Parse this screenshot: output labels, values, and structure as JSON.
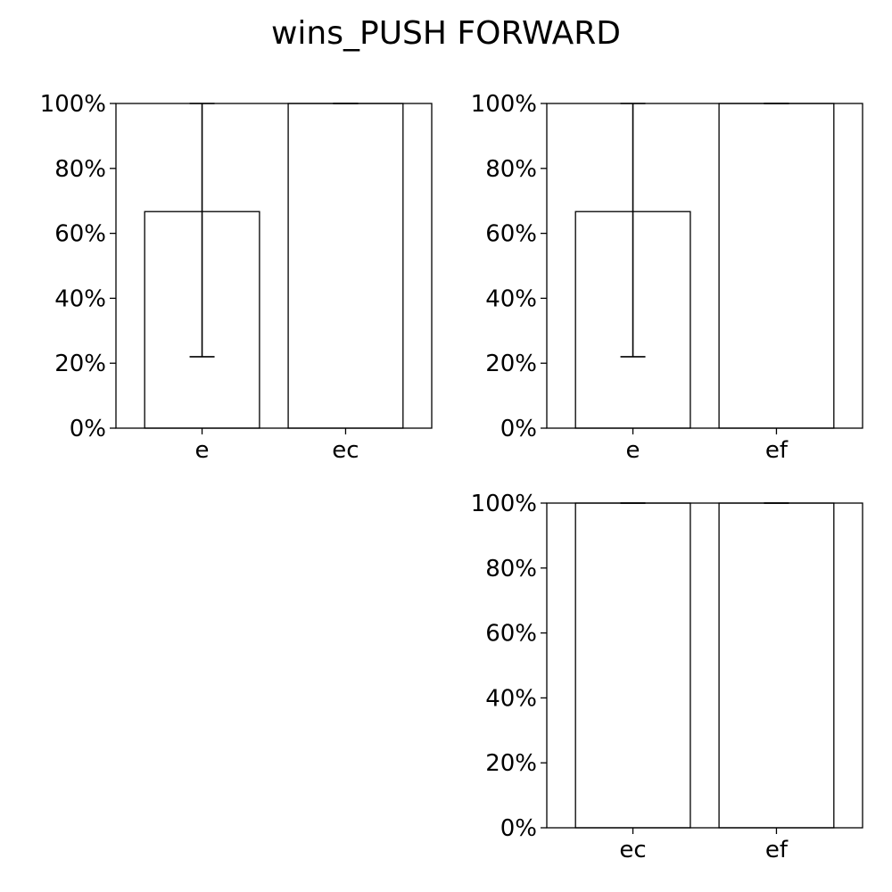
{
  "figure": {
    "title": "wins_PUSH FORWARD"
  },
  "chart_data": [
    {
      "type": "bar",
      "panel": "top-left",
      "categories": [
        "e",
        "ec"
      ],
      "values": [
        0.667,
        1.0
      ],
      "error_lower": [
        0.22,
        1.0
      ],
      "error_upper": [
        1.0,
        1.0
      ],
      "ylim": [
        0,
        1
      ],
      "yticks": [
        "0%",
        "20%",
        "40%",
        "60%",
        "80%",
        "100%"
      ],
      "bar_fill": "#ffffff",
      "bar_edge": "#000000",
      "grid": false
    },
    {
      "type": "bar",
      "panel": "top-right",
      "categories": [
        "e",
        "ef"
      ],
      "values": [
        0.667,
        1.0
      ],
      "error_lower": [
        0.22,
        1.0
      ],
      "error_upper": [
        1.0,
        1.0
      ],
      "ylim": [
        0,
        1
      ],
      "yticks": [
        "0%",
        "20%",
        "40%",
        "60%",
        "80%",
        "100%"
      ],
      "bar_fill": "#ffffff",
      "bar_edge": "#000000",
      "grid": false
    },
    {
      "type": "bar",
      "panel": "bottom-right",
      "categories": [
        "ec",
        "ef"
      ],
      "values": [
        1.0,
        1.0
      ],
      "error_lower": [
        1.0,
        1.0
      ],
      "error_upper": [
        1.0,
        1.0
      ],
      "ylim": [
        0,
        1
      ],
      "yticks": [
        "0%",
        "20%",
        "40%",
        "60%",
        "80%",
        "100%"
      ],
      "bar_fill": "#ffffff",
      "bar_edge": "#000000",
      "grid": false
    }
  ]
}
